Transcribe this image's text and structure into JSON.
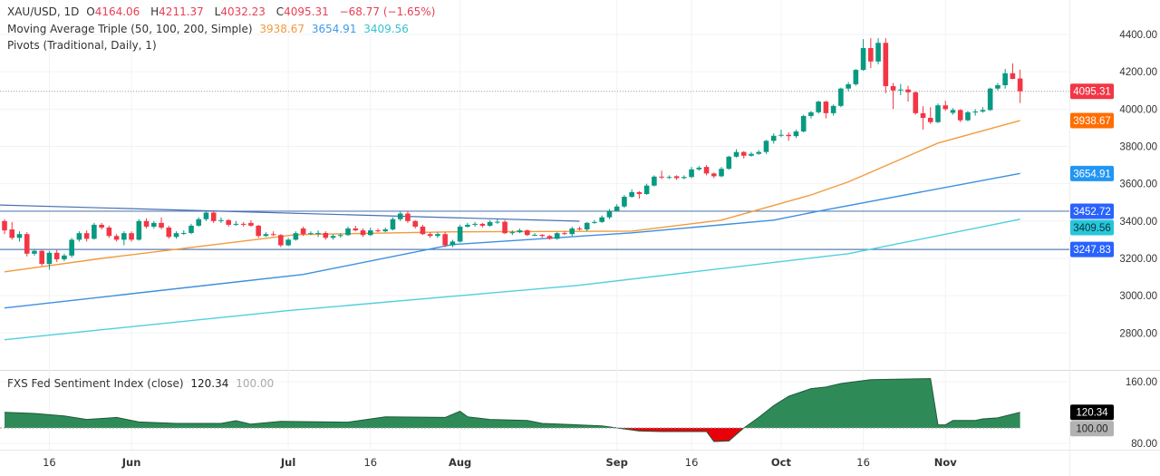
{
  "header": {
    "symbol": "XAU/USD, 1D",
    "open_label": "O",
    "open": "4164.06",
    "high_label": "H",
    "high": "4211.37",
    "low_label": "L",
    "low": "4032.23",
    "close_label": "C",
    "close": "4095.31",
    "change": "−68.77 (−1.65%)",
    "ma_title": "Moving Average Triple (50, 100, 200, Simple)",
    "ma50": "3938.67",
    "ma100": "3654.91",
    "ma200": "3409.56",
    "pivots_title": "Pivots (Traditional, Daily, 1)"
  },
  "sentiment_legend": {
    "title": "FXS Fed Sentiment Index (close)",
    "value": "120.34",
    "baseline": "100.00"
  },
  "colors": {
    "up": "#089981",
    "down": "#f23645",
    "ma50": "#f39a3c",
    "ma100": "#3d8fe0",
    "ma200": "#4fd0dc",
    "pivot": "#5b7fb5",
    "sentiment_up": "#2e8b57",
    "sentiment_down": "#e8000b"
  },
  "chart_data": [
    {
      "type": "candlestick",
      "title": "XAU/USD, 1D",
      "yticks": [
        "4400.00",
        "4200.00",
        "4000.00",
        "3800.00",
        "3600.00",
        "3400.00",
        "3200.00",
        "3000.00",
        "2800.00"
      ],
      "ylim": [
        2800,
        4400
      ],
      "xticks": [
        {
          "label": "16",
          "bar": 6,
          "bold": false
        },
        {
          "label": "Jun",
          "bar": 17,
          "bold": true
        },
        {
          "label": "Jul",
          "bar": 38,
          "bold": true
        },
        {
          "label": "16",
          "bar": 49,
          "bold": false
        },
        {
          "label": "Aug",
          "bar": 61,
          "bold": true
        },
        {
          "label": "Sep",
          "bar": 82,
          "bold": true
        },
        {
          "label": "16",
          "bar": 92,
          "bold": false
        },
        {
          "label": "Oct",
          "bar": 104,
          "bold": true
        },
        {
          "label": "16",
          "bar": 115,
          "bold": false
        },
        {
          "label": "Nov",
          "bar": 126,
          "bold": true
        }
      ],
      "ohlc": [
        [
          3400,
          3410,
          3330,
          3350
        ],
        [
          3355,
          3395,
          3300,
          3310
        ],
        [
          3310,
          3345,
          3290,
          3330
        ],
        [
          3330,
          3340,
          3210,
          3225
        ],
        [
          3225,
          3250,
          3215,
          3240
        ],
        [
          3240,
          3245,
          3160,
          3170
        ],
        [
          3170,
          3240,
          3140,
          3230
        ],
        [
          3230,
          3245,
          3180,
          3195
        ],
        [
          3195,
          3225,
          3185,
          3215
        ],
        [
          3215,
          3310,
          3205,
          3300
        ],
        [
          3300,
          3345,
          3290,
          3335
        ],
        [
          3335,
          3350,
          3290,
          3305
        ],
        [
          3305,
          3390,
          3300,
          3380
        ],
        [
          3380,
          3390,
          3355,
          3365
        ],
        [
          3365,
          3375,
          3310,
          3320
        ],
        [
          3320,
          3330,
          3290,
          3300
        ],
        [
          3300,
          3345,
          3270,
          3335
        ],
        [
          3335,
          3345,
          3290,
          3300
        ],
        [
          3300,
          3410,
          3295,
          3400
        ],
        [
          3400,
          3415,
          3360,
          3370
        ],
        [
          3370,
          3400,
          3360,
          3390
        ],
        [
          3390,
          3420,
          3355,
          3365
        ],
        [
          3365,
          3375,
          3305,
          3315
        ],
        [
          3315,
          3345,
          3305,
          3335
        ],
        [
          3335,
          3350,
          3325,
          3336
        ],
        [
          3336,
          3385,
          3330,
          3375
        ],
        [
          3375,
          3420,
          3370,
          3410
        ],
        [
          3410,
          3455,
          3400,
          3445
        ],
        [
          3445,
          3455,
          3390,
          3400
        ],
        [
          3400,
          3420,
          3390,
          3405
        ],
        [
          3405,
          3410,
          3370,
          3380
        ],
        [
          3380,
          3400,
          3375,
          3385
        ],
        [
          3385,
          3395,
          3370,
          3380
        ],
        [
          3390,
          3405,
          3370,
          3375
        ],
        [
          3375,
          3380,
          3310,
          3320
        ],
        [
          3320,
          3340,
          3315,
          3330
        ],
        [
          3330,
          3345,
          3320,
          3325
        ],
        [
          3325,
          3330,
          3260,
          3270
        ],
        [
          3270,
          3310,
          3265,
          3300
        ],
        [
          3300,
          3345,
          3295,
          3335
        ],
        [
          3360,
          3370,
          3320,
          3330
        ],
        [
          3330,
          3345,
          3325,
          3335
        ],
        [
          3335,
          3350,
          3315,
          3336
        ],
        [
          3336,
          3345,
          3300,
          3310
        ],
        [
          3310,
          3330,
          3300,
          3320
        ],
        [
          3320,
          3335,
          3310,
          3325
        ],
        [
          3325,
          3370,
          3320,
          3360
        ],
        [
          3360,
          3375,
          3345,
          3350
        ],
        [
          3350,
          3360,
          3315,
          3325
        ],
        [
          3325,
          3365,
          3320,
          3350
        ],
        [
          3350,
          3360,
          3340,
          3345
        ],
        [
          3345,
          3365,
          3340,
          3355
        ],
        [
          3355,
          3420,
          3350,
          3410
        ],
        [
          3410,
          3450,
          3400,
          3440
        ],
        [
          3440,
          3455,
          3390,
          3400
        ],
        [
          3400,
          3405,
          3360,
          3370
        ],
        [
          3370,
          3380,
          3325,
          3330
        ],
        [
          3330,
          3340,
          3310,
          3320
        ],
        [
          3320,
          3340,
          3310,
          3330
        ],
        [
          3330,
          3340,
          3260,
          3270
        ],
        [
          3270,
          3300,
          3260,
          3290
        ],
        [
          3290,
          3380,
          3285,
          3370
        ],
        [
          3370,
          3390,
          3365,
          3380
        ],
        [
          3380,
          3395,
          3370,
          3385
        ],
        [
          3385,
          3390,
          3365,
          3375
        ],
        [
          3375,
          3405,
          3370,
          3395
        ],
        [
          3395,
          3410,
          3385,
          3396
        ],
        [
          3396,
          3405,
          3330,
          3335
        ],
        [
          3335,
          3350,
          3325,
          3340
        ],
        [
          3340,
          3360,
          3335,
          3350
        ],
        [
          3350,
          3355,
          3320,
          3325
        ],
        [
          3325,
          3335,
          3320,
          3326
        ],
        [
          3326,
          3330,
          3310,
          3320
        ],
        [
          3320,
          3325,
          3300,
          3305
        ],
        [
          3305,
          3340,
          3300,
          3335
        ],
        [
          3335,
          3345,
          3325,
          3330
        ],
        [
          3330,
          3370,
          3320,
          3360
        ],
        [
          3360,
          3370,
          3350,
          3355
        ],
        [
          3355,
          3395,
          3345,
          3390
        ],
        [
          3390,
          3405,
          3385,
          3395
        ],
        [
          3395,
          3430,
          3390,
          3420
        ],
        [
          3420,
          3465,
          3410,
          3455
        ],
        [
          3455,
          3490,
          3450,
          3478
        ],
        [
          3478,
          3540,
          3470,
          3530
        ],
        [
          3530,
          3570,
          3525,
          3555
        ],
        [
          3555,
          3560,
          3520,
          3545
        ],
        [
          3545,
          3600,
          3540,
          3590
        ],
        [
          3590,
          3645,
          3585,
          3638
        ],
        [
          3638,
          3670,
          3625,
          3633
        ],
        [
          3633,
          3645,
          3625,
          3636
        ],
        [
          3640,
          3645,
          3620,
          3630
        ],
        [
          3630,
          3645,
          3625,
          3636
        ],
        [
          3636,
          3690,
          3630,
          3677
        ],
        [
          3677,
          3695,
          3670,
          3686
        ],
        [
          3690,
          3700,
          3645,
          3655
        ],
        [
          3655,
          3660,
          3630,
          3640
        ],
        [
          3640,
          3690,
          3635,
          3680
        ],
        [
          3680,
          3750,
          3675,
          3745
        ],
        [
          3745,
          3785,
          3740,
          3770
        ],
        [
          3770,
          3775,
          3735,
          3750
        ],
        [
          3750,
          3770,
          3745,
          3760
        ],
        [
          3760,
          3780,
          3755,
          3770
        ],
        [
          3770,
          3835,
          3760,
          3830
        ],
        [
          3830,
          3870,
          3815,
          3857
        ],
        [
          3857,
          3890,
          3850,
          3862
        ],
        [
          3862,
          3875,
          3830,
          3855
        ],
        [
          3855,
          3890,
          3845,
          3880
        ],
        [
          3880,
          3970,
          3875,
          3963
        ],
        [
          3963,
          3990,
          3950,
          3983
        ],
        [
          3983,
          4045,
          3975,
          4040
        ],
        [
          4040,
          4045,
          3950,
          3978
        ],
        [
          3978,
          4025,
          3965,
          4017
        ],
        [
          4017,
          4115,
          4010,
          4110
        ],
        [
          4110,
          4145,
          4095,
          4133
        ],
        [
          4133,
          4215,
          4125,
          4210
        ],
        [
          4210,
          4375,
          4205,
          4327
        ],
        [
          4327,
          4380,
          4220,
          4255
        ],
        [
          4255,
          4380,
          4240,
          4355
        ],
        [
          4355,
          4380,
          4085,
          4123
        ],
        [
          4123,
          4140,
          4000,
          4100
        ],
        [
          4100,
          4135,
          4075,
          4105
        ],
        [
          4105,
          4125,
          4040,
          4090
        ],
        [
          4090,
          4095,
          3970,
          3978
        ],
        [
          3978,
          4015,
          3890,
          3953
        ],
        [
          3953,
          4010,
          3920,
          3930
        ],
        [
          3930,
          4030,
          3925,
          4020
        ],
        [
          4020,
          4045,
          3990,
          4000
        ],
        [
          3980,
          4005,
          3970,
          3995
        ],
        [
          3995,
          4000,
          3930,
          3940
        ],
        [
          3940,
          3990,
          3935,
          3983
        ],
        [
          3983,
          4000,
          3965,
          3987
        ],
        [
          3987,
          4010,
          3980,
          3995
        ],
        [
          3995,
          4115,
          3990,
          4110
        ],
        [
          4110,
          4140,
          4100,
          4128
        ],
        [
          4128,
          4215,
          4110,
          4192
        ],
        [
          4192,
          4245,
          4160,
          4162
        ],
        [
          4164.06,
          4211.37,
          4032.23,
          4095.31
        ]
      ],
      "moving_averages": [
        {
          "name": "MA 50",
          "color_key": "ma50",
          "points": [
            [
              0,
              3128
            ],
            [
              13,
              3200
            ],
            [
              39,
              3327
            ],
            [
              60,
              3342
            ],
            [
              84,
              3346
            ],
            [
              96,
              3405
            ],
            [
              108,
              3540
            ],
            [
              113,
              3610
            ],
            [
              125,
              3818
            ],
            [
              136,
              3938.67
            ]
          ]
        },
        {
          "name": "MA 100",
          "color_key": "ma100",
          "points": [
            [
              0,
              2934
            ],
            [
              40,
              3114
            ],
            [
              60,
              3274
            ],
            [
              84,
              3337
            ],
            [
              103,
              3405
            ],
            [
              109,
              3453
            ],
            [
              136,
              3654.91
            ]
          ]
        },
        {
          "name": "MA 200",
          "color_key": "ma200",
          "points": [
            [
              0,
              2764
            ],
            [
              38,
              2920
            ],
            [
              77,
              3056
            ],
            [
              113,
              3225
            ],
            [
              136,
              3409.56
            ]
          ]
        }
      ],
      "pivot_levels": [
        3452.72,
        3247.83
      ],
      "trendline": [
        [
          0,
          3486
        ],
        [
          77,
          3399
        ]
      ],
      "last_price": 4095.31,
      "price_tags": [
        {
          "text": "4095.31",
          "value": 4095.31,
          "bg": "#f23645",
          "fg": "#ffffff"
        },
        {
          "text": "3938.67",
          "value": 3938.67,
          "bg": "#ff6d00",
          "fg": "#ffffff"
        },
        {
          "text": "3654.91",
          "value": 3654.91,
          "bg": "#2196f3",
          "fg": "#ffffff"
        },
        {
          "text": "3452.72",
          "value": 3452.72,
          "bg": "#2962ff",
          "fg": "#ffffff"
        },
        {
          "text": "3409.56",
          "value": 3409.56,
          "bg": "#26c6da",
          "fg": "#10313a"
        },
        {
          "text": "3247.83",
          "value": 3247.83,
          "bg": "#2962ff",
          "fg": "#ffffff"
        }
      ]
    },
    {
      "type": "area",
      "title": "FXS Fed Sentiment Index (close)",
      "baseline": 100,
      "ylim": [
        80,
        170
      ],
      "yticks": [
        "160.00",
        "80.00"
      ],
      "points": [
        [
          0,
          120.4
        ],
        [
          4,
          118.8
        ],
        [
          8,
          115.7
        ],
        [
          11,
          111
        ],
        [
          15,
          113.7
        ],
        [
          18,
          107.8
        ],
        [
          23,
          105.9
        ],
        [
          29,
          105.9
        ],
        [
          31,
          109.4
        ],
        [
          33,
          105
        ],
        [
          37,
          108.6
        ],
        [
          46,
          107.5
        ],
        [
          51,
          114.5
        ],
        [
          59,
          113.7
        ],
        [
          61,
          121.6
        ],
        [
          62,
          114.5
        ],
        [
          65,
          111
        ],
        [
          70,
          109.8
        ],
        [
          72,
          105.9
        ],
        [
          80,
          102.7
        ],
        [
          82,
          100
        ],
        [
          85,
          96
        ],
        [
          88,
          95.3
        ],
        [
          94,
          95.3
        ],
        [
          95,
          82.4
        ],
        [
          97,
          83
        ],
        [
          99,
          100
        ],
        [
          101,
          113.7
        ],
        [
          103,
          129
        ],
        [
          105,
          141
        ],
        [
          108,
          151
        ],
        [
          110,
          153
        ],
        [
          112,
          157.6
        ],
        [
          116,
          162.7
        ],
        [
          124,
          164
        ],
        [
          125,
          104
        ],
        [
          126,
          104
        ],
        [
          127,
          109.8
        ],
        [
          130,
          109.8
        ],
        [
          131,
          111.8
        ],
        [
          133,
          113
        ],
        [
          136,
          120.34
        ]
      ],
      "value_tags": [
        {
          "text": "120.34",
          "value": 120.34,
          "bg": "#000000",
          "fg": "#ffffff"
        },
        {
          "text": "100.00",
          "value": 100,
          "bg": "#b2b2b2",
          "fg": "#222222"
        }
      ]
    }
  ]
}
